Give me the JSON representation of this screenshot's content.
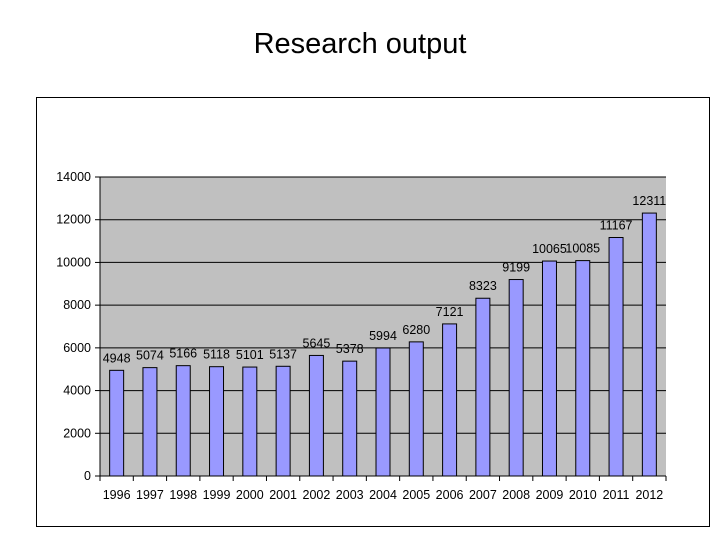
{
  "slide": {
    "title": "Research output"
  },
  "chart_data": {
    "type": "bar",
    "title": "",
    "xlabel": "",
    "ylabel": "",
    "categories": [
      "1996",
      "1997",
      "1998",
      "1999",
      "2000",
      "2001",
      "2002",
      "2003",
      "2004",
      "2005",
      "2006",
      "2007",
      "2008",
      "2009",
      "2010",
      "2011",
      "2012"
    ],
    "series": [
      {
        "values": [
          4948,
          5074,
          5166,
          5118,
          5101,
          5137,
          5645,
          5378,
          5994,
          6280,
          7121,
          8323,
          9199,
          10065,
          10085,
          11167,
          12311
        ]
      }
    ],
    "data_labels": [
      "4948",
      "5074",
      "5166",
      "5118",
      "5101",
      "5137",
      "5645",
      "5378",
      "5994",
      "6280",
      "7121",
      "8323",
      "9199",
      "10065",
      "10085",
      "11167",
      "12311"
    ],
    "ylim": [
      0,
      14000
    ],
    "yticks": [
      0,
      2000,
      4000,
      6000,
      8000,
      10000,
      12000,
      14000
    ],
    "ytick_labels": [
      "0",
      "2000",
      "4000",
      "6000",
      "8000",
      "10000",
      "12000",
      "14000"
    ],
    "grid": true,
    "legend": "none",
    "colors": {
      "bar_fill": "#9999ff",
      "bar_stroke": "#000000",
      "plot_bg": "#c0c0c0",
      "grid": "#000000"
    }
  }
}
